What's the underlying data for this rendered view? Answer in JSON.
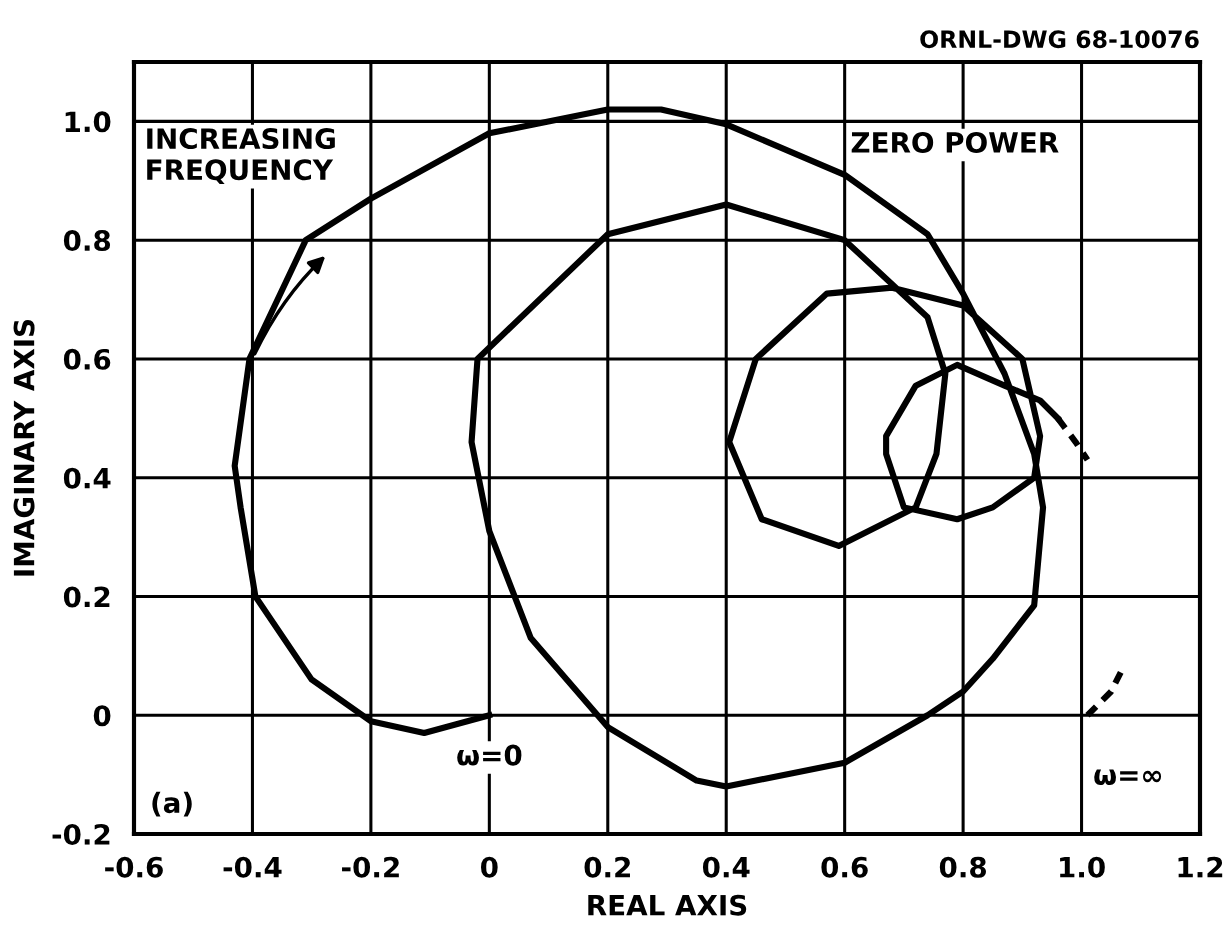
{
  "chart_data": {
    "type": "line",
    "xlabel": "REAL AXIS",
    "ylabel": "IMAGINARY AXIS",
    "xlim": [
      -0.6,
      1.2
    ],
    "xticks": [
      -0.6,
      -0.4,
      -0.2,
      0,
      0.2,
      0.4,
      0.6,
      0.8,
      {
        "value": 1,
        "label": "1.0"
      },
      1.2
    ],
    "ylim": [
      -0.2,
      1.1
    ],
    "yticks": [
      -0.2,
      0,
      0.2,
      0.4,
      0.6,
      0.8,
      {
        "value": 1,
        "label": "1.0"
      }
    ],
    "grid": true,
    "marker": "none",
    "series": [
      {
        "color": "#000000",
        "line_style": "solid",
        "x": [
          0.0,
          -0.11,
          -0.2,
          -0.3,
          -0.395,
          -0.42,
          -0.43,
          -0.405,
          -0.31,
          -0.2,
          0.0,
          0.2,
          0.29,
          0.4,
          0.6,
          0.74,
          0.8,
          0.87,
          0.92,
          0.935,
          0.92,
          0.85,
          0.8,
          0.74,
          0.6,
          0.4,
          0.35,
          0.2,
          0.07,
          0.0,
          -0.03,
          -0.02,
          0.2,
          0.4,
          0.6,
          0.74,
          0.77,
          0.755,
          0.72,
          0.59,
          0.46,
          0.405,
          0.45,
          0.57,
          0.68,
          0.8,
          0.9,
          0.93,
          0.92,
          0.85,
          0.79,
          0.7,
          0.67,
          0.67,
          0.72,
          0.79,
          0.87,
          0.93,
          0.96
        ],
        "values": [
          0.0,
          -0.03,
          -0.01,
          0.06,
          0.2,
          0.35,
          0.42,
          0.6,
          0.8,
          0.87,
          0.98,
          1.02,
          1.02,
          0.995,
          0.91,
          0.81,
          0.71,
          0.575,
          0.44,
          0.35,
          0.185,
          0.095,
          0.04,
          0.0,
          -0.08,
          -0.12,
          -0.11,
          -0.02,
          0.13,
          0.31,
          0.46,
          0.6,
          0.81,
          0.86,
          0.8,
          0.67,
          0.575,
          0.44,
          0.35,
          0.285,
          0.33,
          0.46,
          0.6,
          0.71,
          0.72,
          0.69,
          0.6,
          0.47,
          0.4,
          0.35,
          0.33,
          0.35,
          0.44,
          0.47,
          0.555,
          0.59,
          0.555,
          0.53,
          0.5
        ]
      },
      {
        "color": "#000000",
        "line_style": "dashed",
        "x": [
          0.96,
          0.99,
          1.01
        ],
        "values": [
          0.5,
          0.46,
          0.43
        ]
      },
      {
        "color": "#000000",
        "line_style": "dashed",
        "x": [
          1.01,
          1.05,
          1.07
        ],
        "values": [
          0.0,
          0.04,
          0.08
        ]
      }
    ],
    "annotations": [
      "ORNL-DWG 68-10076",
      "INCREASING\nFREQUENCY",
      "ZERO POWER",
      "(a)",
      {
        "text": "ω=0",
        "x": 0,
        "y": 0
      },
      {
        "text": "ω=∞",
        "x": 1.01,
        "y": 0
      }
    ]
  }
}
